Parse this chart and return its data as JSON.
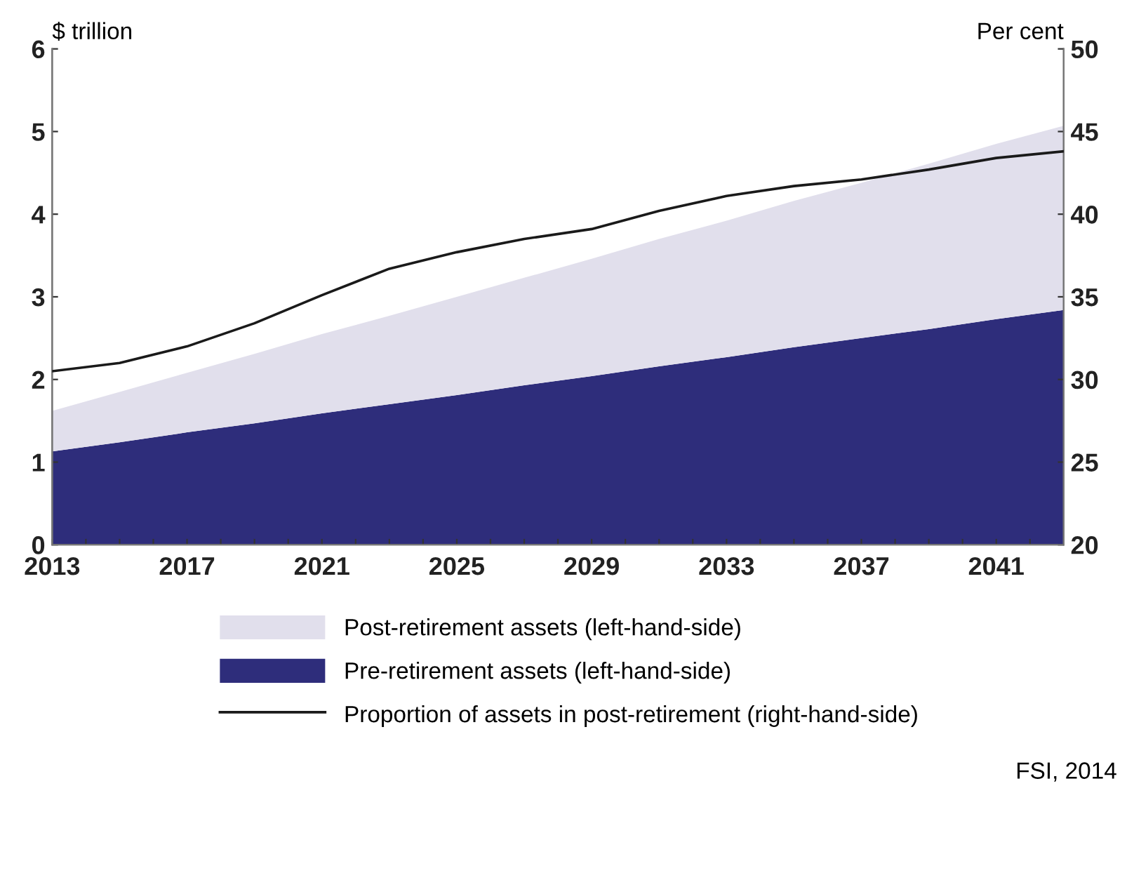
{
  "chart_data": {
    "type": "area",
    "stacked": true,
    "x": [
      2013,
      2015,
      2017,
      2019,
      2021,
      2023,
      2025,
      2027,
      2029,
      2031,
      2033,
      2035,
      2037,
      2039,
      2041,
      2043
    ],
    "series": [
      {
        "name": "Pre-retirement assets (left-hand-side)",
        "color": "#2e2d7b",
        "values": [
          1.13,
          1.24,
          1.36,
          1.47,
          1.59,
          1.7,
          1.81,
          1.93,
          2.04,
          2.16,
          2.27,
          2.39,
          2.5,
          2.61,
          2.73,
          2.84
        ]
      },
      {
        "name": "Post-retirement assets (left-hand-side)",
        "color": "#e1dfec",
        "values": [
          0.49,
          0.61,
          0.72,
          0.84,
          0.96,
          1.07,
          1.19,
          1.3,
          1.42,
          1.54,
          1.65,
          1.77,
          1.88,
          2.0,
          2.12,
          2.23
        ]
      },
      {
        "name": "Proportion of assets in post-retirement (right-hand-side)",
        "color": "#1a1a1a",
        "type": "line",
        "axis": "y2",
        "values": [
          30.5,
          31.0,
          32.0,
          33.4,
          35.1,
          36.7,
          37.7,
          38.5,
          39.1,
          40.2,
          41.1,
          41.7,
          42.1,
          42.7,
          43.4,
          43.8
        ]
      }
    ],
    "xlim": [
      2013,
      2043
    ],
    "xticks": [
      2013,
      {
        "value": 2014,
        "label": null
      },
      {
        "value": 2015,
        "label": null
      },
      {
        "value": 2016,
        "label": null
      },
      2017,
      {
        "value": 2018,
        "label": null
      },
      {
        "value": 2019,
        "label": null
      },
      {
        "value": 2020,
        "label": null
      },
      2021,
      {
        "value": 2022,
        "label": null
      },
      {
        "value": 2023,
        "label": null
      },
      {
        "value": 2024,
        "label": null
      },
      2025,
      {
        "value": 2026,
        "label": null
      },
      {
        "value": 2027,
        "label": null
      },
      {
        "value": 2028,
        "label": null
      },
      2029,
      {
        "value": 2030,
        "label": null
      },
      {
        "value": 2031,
        "label": null
      },
      {
        "value": 2032,
        "label": null
      },
      2033,
      {
        "value": 2034,
        "label": null
      },
      {
        "value": 2035,
        "label": null
      },
      {
        "value": 2036,
        "label": null
      },
      2037,
      {
        "value": 2038,
        "label": null
      },
      {
        "value": 2039,
        "label": null
      },
      {
        "value": 2040,
        "label": null
      },
      2041,
      {
        "value": 2042,
        "label": null
      }
    ],
    "ylim": [
      0,
      6
    ],
    "yticks": [
      0,
      1,
      2,
      3,
      4,
      5,
      6
    ],
    "y2lim": [
      20,
      50
    ],
    "y2ticks": [
      20,
      25,
      30,
      35,
      40,
      45,
      50
    ],
    "ylabel": "$ trillion",
    "y2label": "Per cent",
    "legend": "bottom",
    "grid": false,
    "annotations": [
      "FSI, 2014"
    ]
  }
}
